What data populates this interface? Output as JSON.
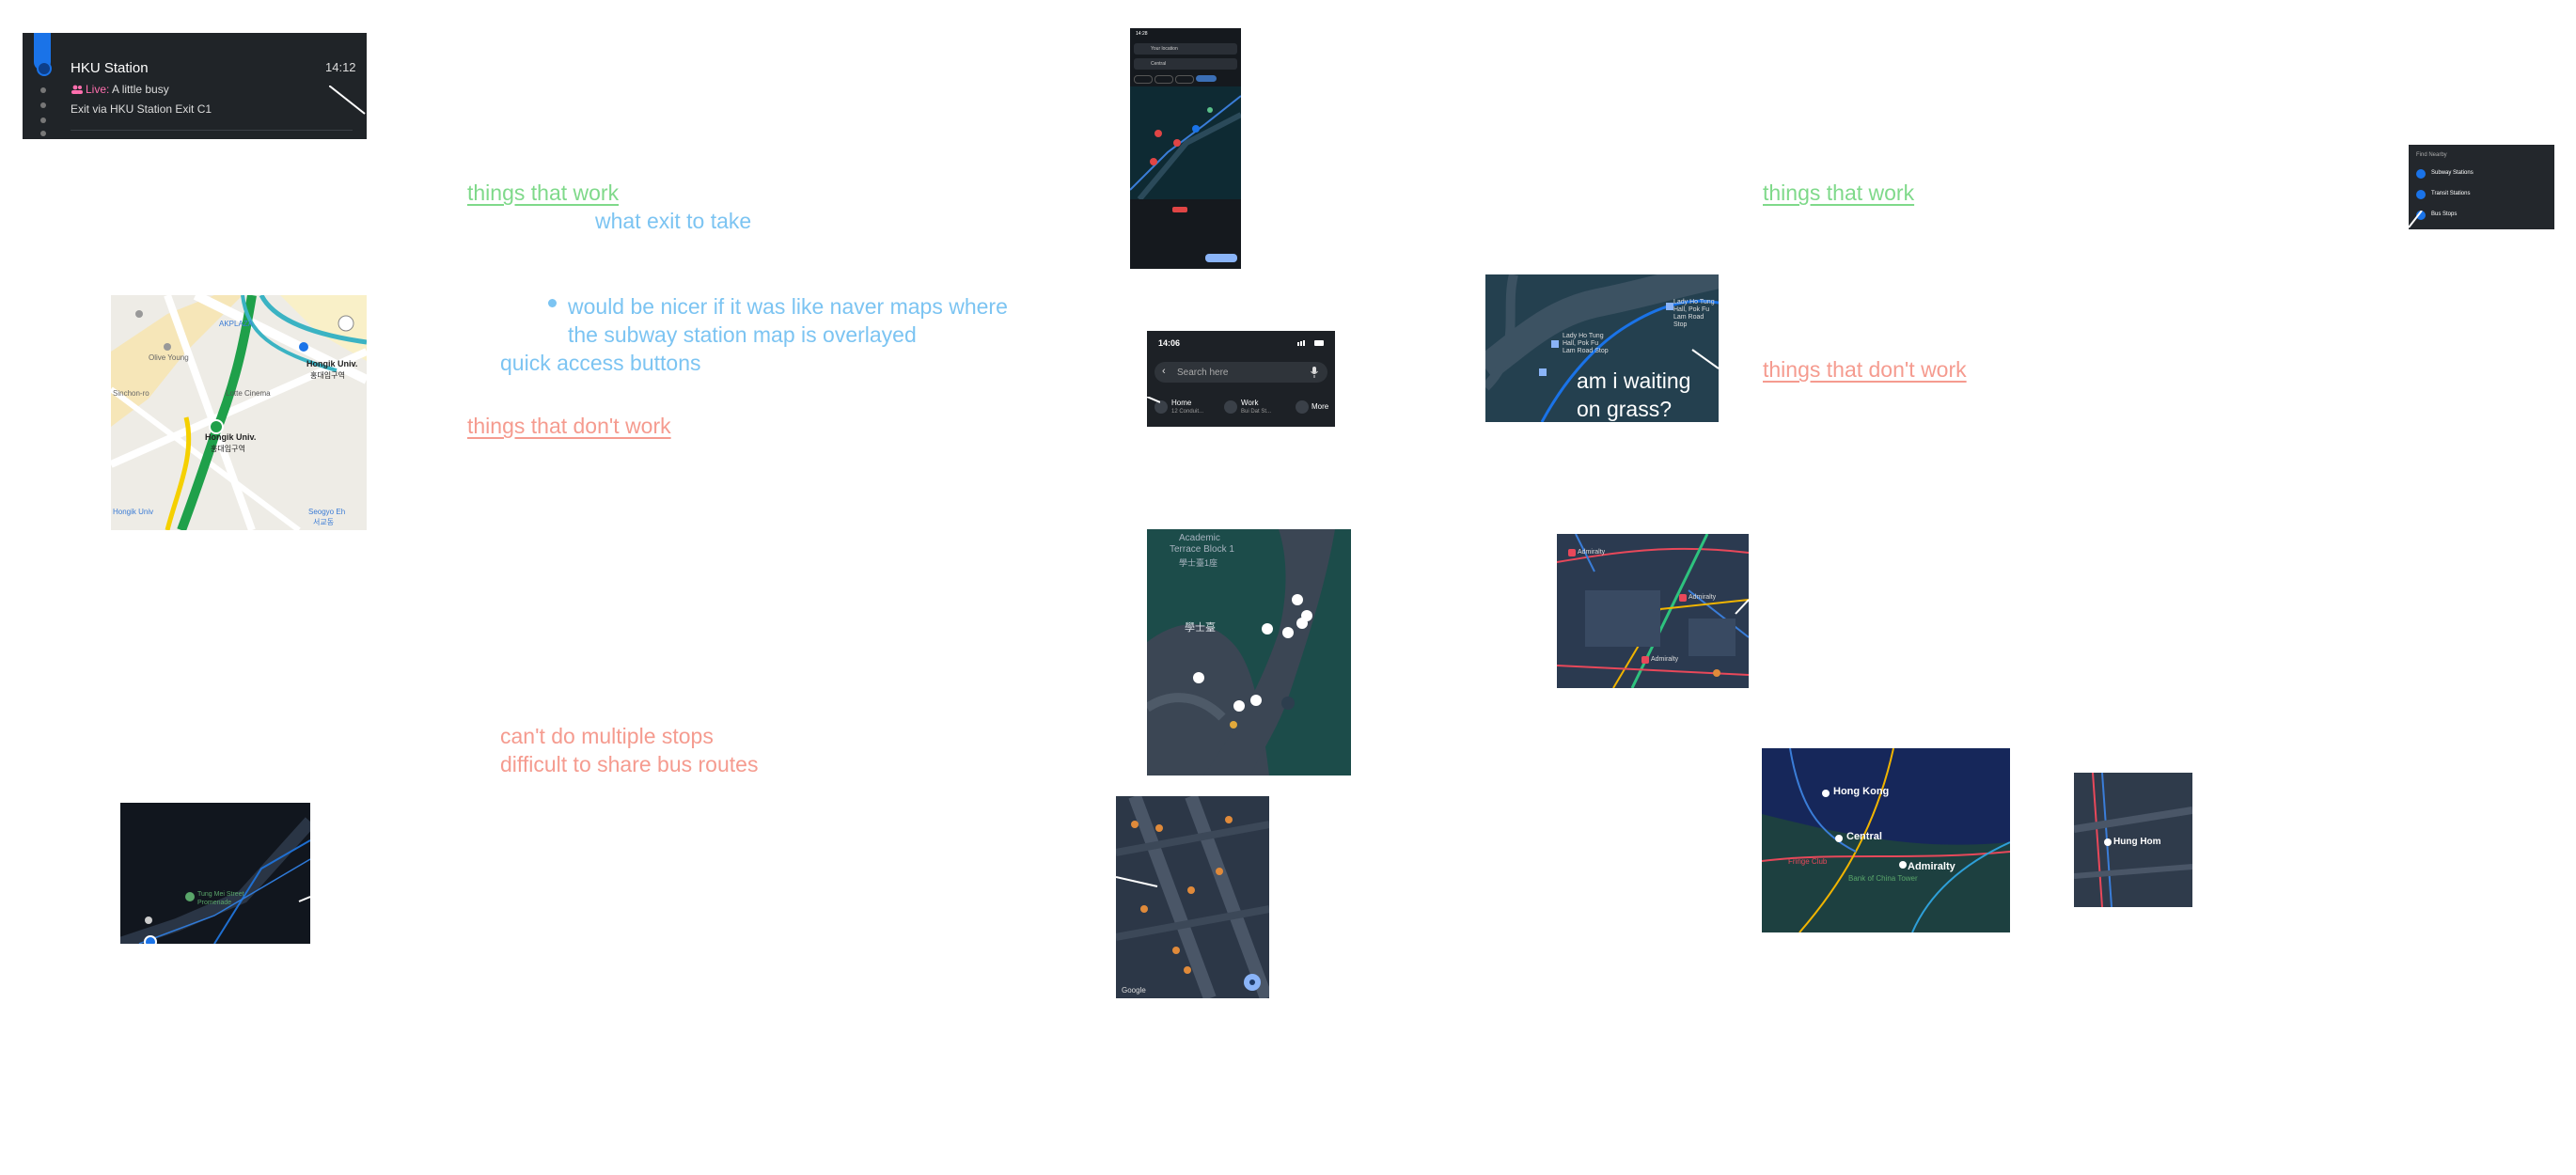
{
  "notes": {
    "things_work_1": "things that work",
    "what_exit": "what exit to take",
    "naver_1": "would be nicer if it was like naver maps where",
    "naver_2": "the subway station map is overlayed",
    "quick_access": "quick access buttons",
    "things_dont_1": "things that don't work",
    "multi_stops": "can't do multiple stops",
    "share_routes": "difficult to share bus routes",
    "things_work_2": "things that work",
    "things_dont_2": "things that don't work",
    "grass": "am i waiting",
    "grass_2": "on grass?"
  },
  "station_card": {
    "title": "HKU Station",
    "time": "14:12",
    "live_label": "Live:",
    "live_status": "A little busy",
    "exit": "Exit via HKU Station Exit C1"
  },
  "naver_map": {
    "labels": [
      "AKPLAZA",
      "Hongik Univ.",
      "홍대입구역",
      "Lotte Cinema",
      "Hongik Univ.",
      "홍대입구역",
      "Olive Young",
      "Sinchon-ro",
      "Seogyo Eh",
      "서교동",
      "Hongik Univ"
    ]
  },
  "search_bar": {
    "time": "14:06",
    "placeholder": "Search here",
    "home_label": "Home",
    "home_sub": "12 Conduit...",
    "work_label": "Work",
    "work_sub": "Bui Dat St...",
    "more_label": "More"
  },
  "phone_screen": {
    "time": "14:28",
    "from": "Your location",
    "to": "Central"
  },
  "campus_map": {
    "labels": [
      "Academic",
      "Terrace Block 1",
      "學士臺1座",
      "學士臺"
    ]
  },
  "bus_stop_map": {
    "labels": [
      "Lady Ho Tung",
      "Hall, Pok Fu",
      "Lam Road Stop",
      "Lady Ho Tung",
      "Hall, Pok Fu",
      "Lam Road Stop"
    ]
  },
  "nearby_menu": {
    "title": "Find Nearby",
    "items": [
      "Subway Stations",
      "Transit Stations",
      "Bus Stops"
    ]
  },
  "admiralty_map": {
    "labels": [
      "Admiralty",
      "Admiralty",
      "Admiralty"
    ]
  },
  "city_map": {
    "labels": [
      "Hong Kong",
      "Central",
      "Admiralty",
      "Fringe Club",
      "Bank of China Tower"
    ]
  },
  "hunghom_map": {
    "label": "Hung Hom"
  },
  "dark_station": {
    "label": "Tung Mei Street",
    "label2": "Promenade"
  },
  "street_map": {
    "watermark": "Google"
  },
  "colors": {
    "green_note": "#7fd98a",
    "red_note": "#f59b8f",
    "blue_note": "#7cc4f2",
    "dark_ui": "#1e2328",
    "transit_blue": "#1a73e8"
  }
}
